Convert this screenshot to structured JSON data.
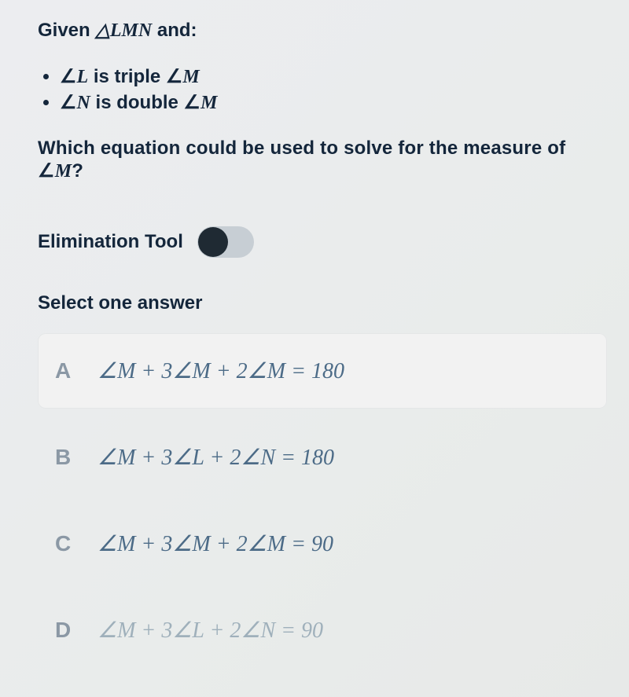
{
  "prompt": {
    "given_prefix": "Given ",
    "triangle_symbol": "△",
    "triangle_vertices": "LMN",
    "given_suffix": " and:",
    "bullets": [
      {
        "angle": "∠",
        "subject": "L",
        "rest": " is triple ",
        "angle2": "∠",
        "target": "M"
      },
      {
        "angle": "∠",
        "subject": "N",
        "rest": " is double ",
        "angle2": "∠",
        "target": "M"
      }
    ],
    "question_prefix": "Which equation could be used to solve for the measure of ",
    "question_angle": "∠",
    "question_var": "M",
    "question_suffix": "?"
  },
  "tool": {
    "label": "Elimination Tool",
    "on": false
  },
  "select_label": "Select one answer",
  "answers": {
    "items": [
      {
        "letter": "A",
        "expr_math": "∠M + 3∠M + 2∠M = 180",
        "highlight": true,
        "muted": false
      },
      {
        "letter": "B",
        "expr_math": "∠M + 3∠L + 2∠N = 180",
        "highlight": false,
        "muted": false
      },
      {
        "letter": "C",
        "expr_math": "∠M + 3∠M + 2∠M = 90",
        "highlight": false,
        "muted": false
      },
      {
        "letter": "D",
        "expr_math": "∠M + 3∠L + 2∠N = 90",
        "highlight": false,
        "muted": true
      }
    ]
  },
  "colors": {
    "page_background": "#eceef0",
    "text_dark": "#14263b",
    "math_color": "#4c6b87",
    "muted_color": "#9fb0bb",
    "letter_color": "#8b98a5",
    "toggle_track": "#c7ced4",
    "toggle_knob": "#1f2a33",
    "highlight_bg": "#f2f2f2"
  }
}
